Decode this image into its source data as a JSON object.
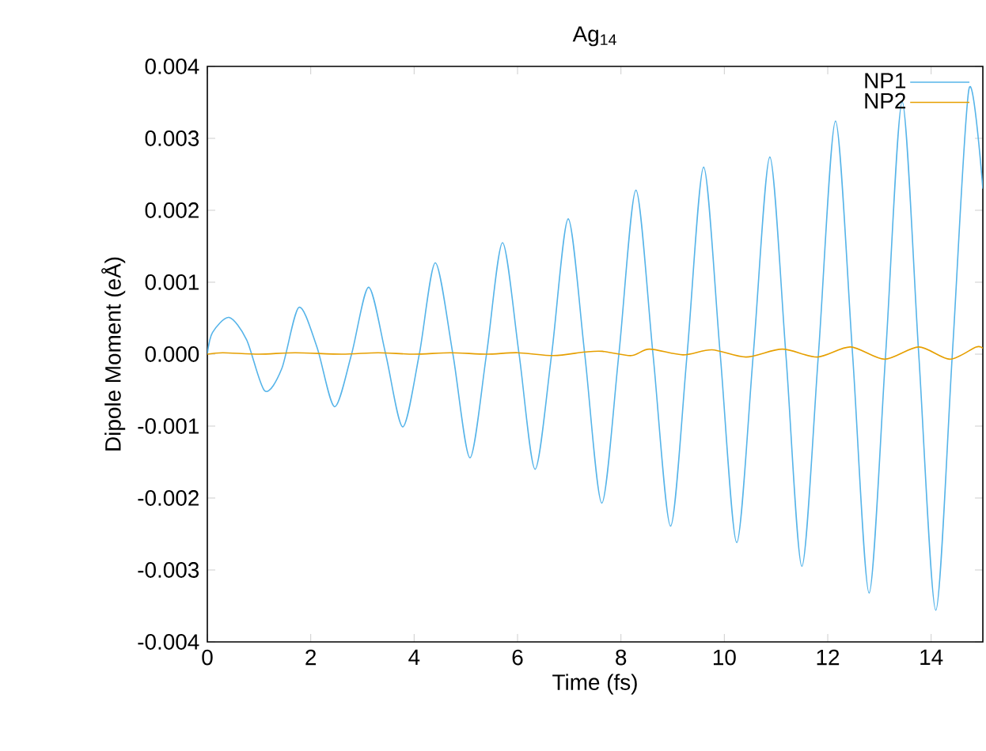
{
  "chart_data": {
    "type": "line",
    "title": "Ag$_{14}$",
    "xlabel": "Time (fs)",
    "ylabel": "Dipole Moment (eÅ)",
    "xlim": [
      0,
      15
    ],
    "xticks": [
      0,
      2,
      4,
      6,
      8,
      10,
      12,
      14
    ],
    "ylim": [
      -0.004,
      0.004
    ],
    "yticks": [
      {
        "value": -0.004,
        "label": "-0.004"
      },
      {
        "value": -0.003,
        "label": "-0.003"
      },
      {
        "value": -0.002,
        "label": "-0.002"
      },
      {
        "value": -0.001,
        "label": "-0.001"
      },
      {
        "value": 0,
        "label": "0.000"
      },
      {
        "value": 0.001,
        "label": "0.001"
      },
      {
        "value": 0.002,
        "label": "0.002"
      },
      {
        "value": 0.003,
        "label": "0.003"
      },
      {
        "value": 0.004,
        "label": "0.004"
      }
    ],
    "legend": "top right",
    "grid": false,
    "marker": "none",
    "line_style": "solid",
    "series": [
      {
        "name": "NP1",
        "color": "#56b4e9",
        "x": [
          0,
          0.1,
          0.42,
          0.76,
          1.11,
          1.44,
          1.77,
          2.12,
          2.46,
          2.79,
          3.12,
          3.45,
          3.78,
          4.1,
          4.41,
          4.75,
          5.08,
          5.4,
          5.71,
          6.03,
          6.34,
          6.66,
          6.98,
          7.3,
          7.63,
          7.96,
          8.29,
          8.62,
          8.96,
          9.28,
          9.6,
          9.92,
          10.24,
          10.56,
          10.88,
          11.19,
          11.5,
          11.82,
          12.15,
          12.48,
          12.8,
          13.12,
          13.44,
          13.76,
          14.09,
          14.41,
          14.73,
          15
        ],
        "values": [
          0,
          0.0003,
          0.00051,
          0.0002,
          -0.00051,
          -0.0002,
          0.00065,
          0.0001,
          -0.00073,
          0,
          0.00093,
          0,
          -0.00101,
          0,
          0.00127,
          0,
          -0.00144,
          0,
          0.00155,
          0,
          -0.0016,
          0,
          0.00188,
          0,
          -0.00207,
          0,
          0.00228,
          0,
          -0.00239,
          0,
          0.0026,
          0,
          -0.00262,
          0,
          0.00274,
          0,
          -0.00295,
          0,
          0.00324,
          0,
          -0.00332,
          0,
          0.00351,
          0,
          -0.00356,
          0,
          0.00368,
          0.0023
        ]
      },
      {
        "name": "NP2",
        "color": "#e69f00",
        "x": [
          0,
          0.3,
          1.0,
          1.7,
          2.6,
          3.3,
          4.0,
          4.7,
          5.4,
          6.0,
          6.7,
          7.3,
          7.64,
          8.2,
          8.55,
          9.2,
          9.76,
          10.42,
          11.12,
          11.8,
          12.44,
          13.1,
          13.76,
          14.36,
          14.87,
          15
        ],
        "values": [
          0,
          2e-05,
          0,
          2e-05,
          0,
          2e-05,
          0,
          2e-05,
          0,
          2e-05,
          -2e-05,
          3e-05,
          4e-05,
          -2e-05,
          7e-05,
          -1e-05,
          6e-05,
          -4e-05,
          7e-05,
          -4e-05,
          0.0001,
          -7e-05,
          0.0001,
          -7e-05,
          0.0001,
          8e-05
        ]
      }
    ]
  }
}
